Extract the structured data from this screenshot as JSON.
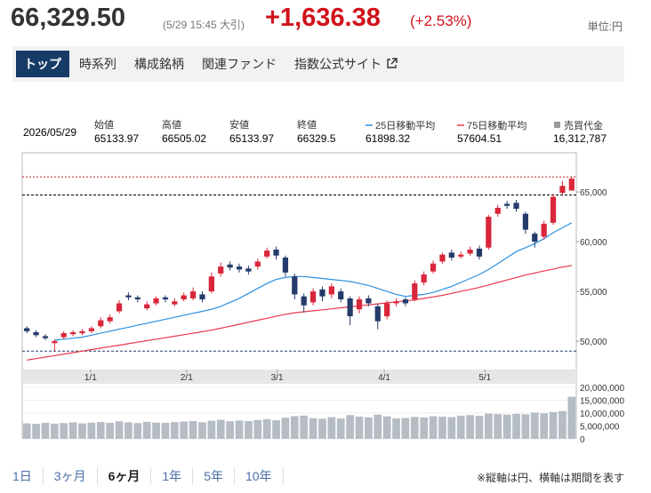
{
  "header": {
    "price": "66,329.50",
    "timestamp": "(5/29 15:45 大引)",
    "change": "+1,636.38",
    "change_pct": "(+2.53%)",
    "unit": "単位:円"
  },
  "tabs": {
    "items": [
      "トップ",
      "時系列",
      "構成銘柄",
      "関連ファンド",
      "指数公式サイト"
    ],
    "active": 0
  },
  "info": {
    "date": "2026/05/29",
    "labels": [
      "始値",
      "高値",
      "安値",
      "終値"
    ],
    "volume_value": "16,312,787"
  },
  "ranges": {
    "items": [
      "1日",
      "3ヶ月",
      "6ヶ月",
      "1年",
      "5年",
      "10年"
    ],
    "active": 2
  },
  "note": "※縦軸は円、横軸は期間を表す",
  "chart_data": {
    "type": "candlestick",
    "xlim": [
      -0.5,
      59.5
    ],
    "xticks": [
      {
        "value": 6.9,
        "label": "1/1"
      },
      {
        "value": 17.3,
        "label": "2/1"
      },
      {
        "value": 27.1,
        "label": "3/1"
      },
      {
        "value": 38.7,
        "label": "4/1"
      },
      {
        "value": 49.6,
        "label": "5/1"
      }
    ],
    "ylim": [
      47150,
      68930
    ],
    "yticks": [
      {
        "value": 50000,
        "label": "50,000"
      },
      {
        "value": 55000,
        "label": "55,000"
      },
      {
        "value": 60000,
        "label": "60,000"
      },
      {
        "value": 65000,
        "label": "65,000"
      }
    ],
    "up_color": "#d9263a",
    "down_color": "#243b6b",
    "open": [
      51300,
      50900,
      50500,
      49800,
      50400,
      50700,
      50800,
      51000,
      51500,
      52000,
      53000,
      54600,
      54400,
      53300,
      53800,
      54400,
      53700,
      54200,
      54300,
      54700,
      55000,
      56800,
      57700,
      57500,
      57300,
      57500,
      58500,
      59200,
      58400,
      56500,
      54500,
      53900,
      55200,
      54700,
      55000,
      54300,
      53200,
      54300,
      53500,
      52500,
      53800,
      54200,
      54200,
      55900,
      57000,
      58000,
      58900,
      58500,
      58800,
      59300,
      59400,
      62800,
      63800,
      63900,
      62800,
      60800,
      60500,
      61900,
      64900,
      65133.97
    ],
    "high": [
      51500,
      51100,
      50700,
      50200,
      51000,
      51100,
      51200,
      51500,
      52400,
      52700,
      54100,
      54900,
      54600,
      54000,
      54500,
      54600,
      54300,
      54900,
      55400,
      55000,
      56900,
      57900,
      58000,
      57800,
      57600,
      58300,
      59400,
      59500,
      58600,
      56800,
      54800,
      55300,
      55500,
      55800,
      55300,
      54500,
      54500,
      54600,
      53800,
      54100,
      54300,
      54400,
      56100,
      57000,
      58100,
      58900,
      59200,
      59000,
      59500,
      59600,
      62700,
      63700,
      64100,
      64200,
      63000,
      61000,
      62100,
      64800,
      66100,
      66505.02
    ],
    "low": [
      50800,
      50400,
      50100,
      49000,
      50200,
      50500,
      50600,
      50800,
      51300,
      51800,
      52800,
      54100,
      53900,
      53100,
      53600,
      53900,
      53500,
      54000,
      54100,
      53900,
      54800,
      56500,
      57100,
      56900,
      56700,
      57200,
      58300,
      58200,
      56500,
      54200,
      52900,
      53600,
      54000,
      54300,
      53900,
      51600,
      52800,
      53500,
      51200,
      52200,
      53500,
      53500,
      54000,
      55600,
      56800,
      57800,
      58100,
      58300,
      58600,
      58200,
      59200,
      62500,
      63300,
      63000,
      60800,
      59400,
      60200,
      61700,
      64700,
      65133.97
    ],
    "close": [
      51000,
      50600,
      50300,
      50000,
      50800,
      50900,
      51000,
      51300,
      52100,
      52400,
      53800,
      54400,
      54200,
      53700,
      54300,
      54200,
      54000,
      54600,
      55000,
      54200,
      56500,
      57500,
      57400,
      57200,
      57000,
      58000,
      59100,
      58600,
      56900,
      54700,
      53600,
      55000,
      54500,
      55500,
      54200,
      52500,
      54200,
      53800,
      52000,
      53800,
      54000,
      53800,
      55800,
      56700,
      57800,
      58700,
      58400,
      58700,
      59200,
      58500,
      62500,
      63400,
      63600,
      63300,
      61200,
      60000,
      61800,
      64500,
      65600,
      66329.5
    ],
    "series": [
      {
        "name": "25日移動平均",
        "color": "#2a8fe0",
        "values": [
          null,
          null,
          null,
          50100,
          50200,
          50300,
          50400,
          50600,
          50800,
          51000,
          51200,
          51400,
          51600,
          51800,
          52000,
          52200,
          52400,
          52600,
          52800,
          53000,
          53200,
          53500,
          53900,
          54300,
          54800,
          55300,
          55800,
          56200,
          56400,
          56500,
          56500,
          56400,
          56300,
          56200,
          56100,
          56000,
          55800,
          55600,
          55300,
          55000,
          54700,
          54500,
          54600,
          54700,
          54900,
          55200,
          55500,
          55900,
          56300,
          56700,
          57200,
          57800,
          58400,
          59000,
          59400,
          59800,
          60300,
          60900,
          61400,
          61898.32
        ]
      },
      {
        "name": "75日移動平均",
        "color": "#e8374a",
        "values": [
          48100,
          48250,
          48400,
          48550,
          48700,
          48850,
          49000,
          49150,
          49300,
          49450,
          49600,
          49750,
          49900,
          50050,
          50200,
          50350,
          50500,
          50650,
          50800,
          50950,
          51100,
          51300,
          51500,
          51700,
          51900,
          52100,
          52300,
          52500,
          52700,
          52850,
          52950,
          53050,
          53150,
          53250,
          53350,
          53450,
          53550,
          53650,
          53750,
          53850,
          53950,
          54050,
          54150,
          54300,
          54450,
          54600,
          54800,
          55000,
          55200,
          55400,
          55650,
          55900,
          56150,
          56400,
          56650,
          56850,
          57050,
          57250,
          57450,
          57604.51
        ]
      }
    ],
    "hlines": [
      {
        "value": 66505.02,
        "color": "#c0202a",
        "dash": "2 2"
      },
      {
        "value": 64693.12,
        "color": "#000000",
        "dash": "3 2"
      },
      {
        "value": 49000,
        "color": "#243b6b",
        "dash": "3 2"
      }
    ],
    "volume": {
      "name": "売買代金",
      "color": "#b5bcc4",
      "ylim": [
        0,
        20000000
      ],
      "yticks": [
        0,
        {
          "value": 5000000,
          "label": "5,000,000"
        },
        {
          "value": 10000000,
          "label": "10,000,000"
        },
        {
          "value": 15000000,
          "label": "15,000,000"
        },
        {
          "value": 20000000,
          "label": "20,000,000"
        }
      ],
      "values": [
        6000000,
        5800000,
        6200000,
        5900000,
        6100000,
        6400000,
        6000000,
        6300000,
        6500000,
        6200000,
        6800000,
        6400000,
        6100000,
        6600000,
        6300000,
        6200000,
        6500000,
        6700000,
        6900000,
        6400000,
        7000000,
        7400000,
        6800000,
        7100000,
        6900000,
        7300000,
        7600000,
        7200000,
        8200000,
        8800000,
        9000000,
        8000000,
        7800000,
        8400000,
        7900000,
        9200000,
        8600000,
        8300000,
        9400000,
        8700000,
        7900000,
        8100000,
        8500000,
        8300000,
        8800000,
        8600000,
        8400000,
        9000000,
        9200000,
        8900000,
        9800000,
        9600000,
        9400000,
        9700000,
        9500000,
        10200000,
        9900000,
        10400000,
        10800000,
        16312787
      ]
    }
  }
}
